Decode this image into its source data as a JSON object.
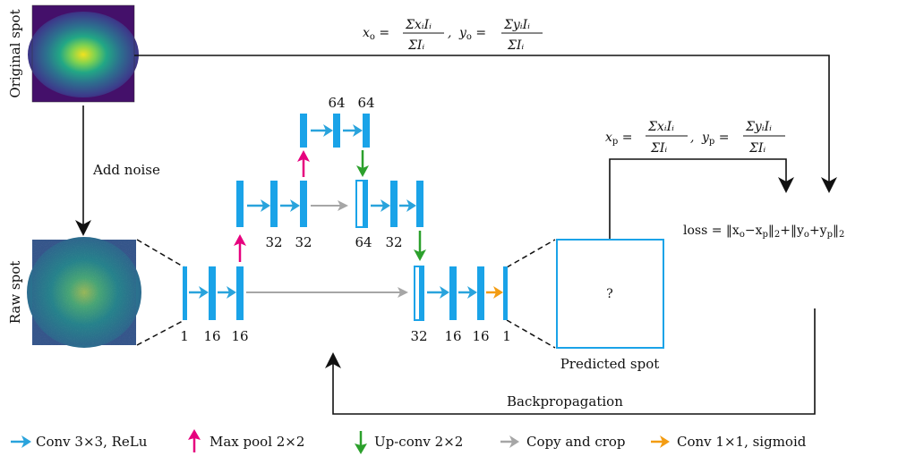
{
  "labels": {
    "original_spot": "Original spot",
    "raw_spot": "Raw spot",
    "add_noise": "Add noise",
    "predicted_spot": "Predicted spot",
    "predicted_placeholder": "?",
    "backpropagation": "Backpropagation"
  },
  "equations": {
    "centroid_original": "x_o = ΣxᵢIᵢ/ΣIᵢ, y_o = ΣyᵢIᵢ/ΣIᵢ",
    "centroid_predicted": "x_p = ΣxᵢIᵢ/ΣIᵢ, y_p = ΣyᵢIᵢ/ΣIᵢ",
    "loss": "loss = ‖xₒ−xₚ‖₂+‖yₒ+yₚ‖₂"
  },
  "channels": {
    "level1_left": [
      "1",
      "16",
      "16"
    ],
    "level2_left": [
      "32",
      "32"
    ],
    "level3": [
      "64",
      "64"
    ],
    "level2_right": [
      "64",
      "32"
    ],
    "level1_right": [
      "32",
      "16",
      "16",
      "1"
    ]
  },
  "legend": [
    {
      "label": "Conv 3×3, ReLu",
      "color": "#29a3dc",
      "icon": "arrow-right-icon"
    },
    {
      "label": "Max pool 2×2",
      "color": "#e6007e",
      "icon": "arrow-up-icon"
    },
    {
      "label": "Up-conv 2×2",
      "color": "#2ca02c",
      "icon": "arrow-down-icon"
    },
    {
      "label": "Copy and crop",
      "color": "#a6a6a6",
      "icon": "arrow-right-icon"
    },
    {
      "label": "Conv 1×1, sigmoid",
      "color": "#f39c12",
      "icon": "arrow-right-icon"
    }
  ],
  "colors": {
    "block": "#1aa3e8",
    "conv_arrow": "#29a3dc",
    "maxpool_arrow": "#e6007e",
    "upconv_arrow": "#2ca02c",
    "copy_arrow": "#a6a6a6",
    "sigmoid_arrow": "#f39c12",
    "line": "#111111"
  }
}
